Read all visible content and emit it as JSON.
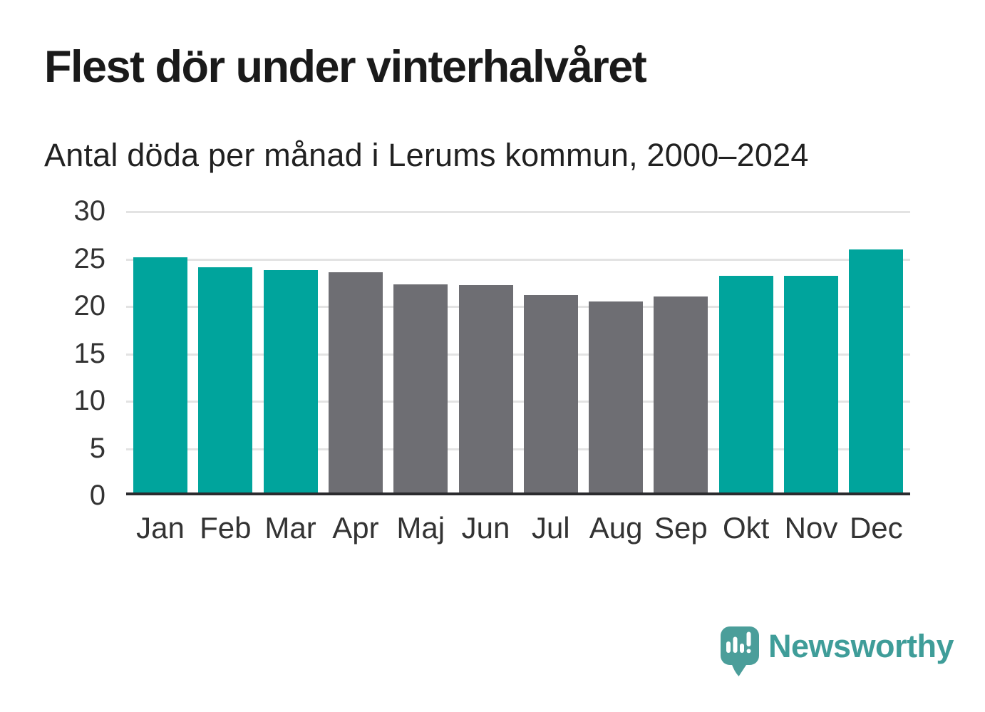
{
  "title": "Flest dör under vinterhalvåret",
  "subtitle": "Antal döda per månad i Lerums kommun, 2000–2024",
  "colors": {
    "teal": "#00a49c",
    "gray": "#6e6e73",
    "grid": "#e3e3e3",
    "axis": "#2b2b2e",
    "title_text": "#1a1a1a",
    "tick_text": "#333333",
    "logo_bubble": "#4b9e9a",
    "logo_wordmark": "#3f9d99"
  },
  "chart_data": {
    "type": "bar",
    "title": "Flest dör under vinterhalvåret",
    "subtitle": "Antal döda per månad i Lerums kommun, 2000–2024",
    "categories": [
      "Jan",
      "Feb",
      "Mar",
      "Apr",
      "Maj",
      "Jun",
      "Jul",
      "Aug",
      "Sep",
      "Okt",
      "Nov",
      "Dec"
    ],
    "values": [
      25.0,
      23.9,
      23.6,
      23.4,
      22.1,
      22.0,
      21.0,
      20.3,
      20.8,
      23.0,
      23.0,
      25.8
    ],
    "bar_colors": [
      "teal",
      "teal",
      "teal",
      "gray",
      "gray",
      "gray",
      "gray",
      "gray",
      "gray",
      "teal",
      "teal",
      "teal"
    ],
    "xlabel": "",
    "ylabel": "",
    "yticks": [
      0,
      5,
      10,
      15,
      20,
      25,
      30
    ],
    "ylim": [
      0,
      30
    ],
    "grid": true,
    "legend": "none"
  },
  "branding": {
    "wordmark": "Newsworthy",
    "logo_icon": "newsworthy-speech-bubble-bar-chart-icon"
  }
}
